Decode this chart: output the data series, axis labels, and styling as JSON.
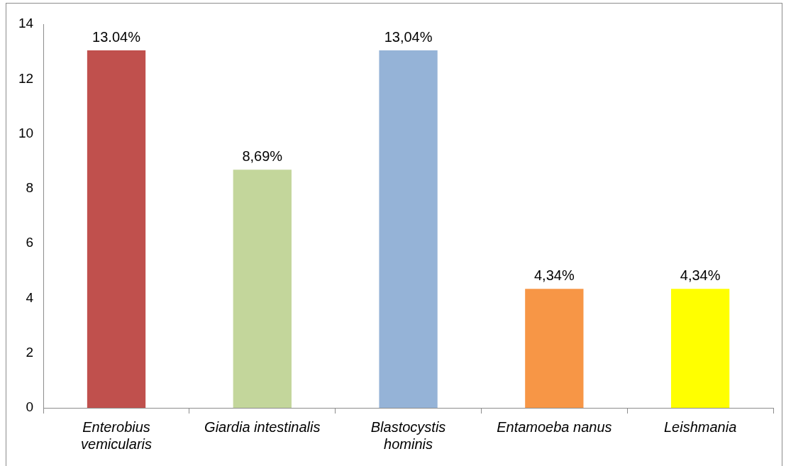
{
  "chart_data": {
    "type": "bar",
    "categories": [
      "Enterobius vemicularis",
      "Giardia intestinalis",
      "Blastocystis hominis",
      "Entamoeba nanus",
      "Leishmania"
    ],
    "values": [
      13.04,
      8.69,
      13.04,
      4.34,
      4.34
    ],
    "colors": [
      "#c0504d",
      "#c3d69b",
      "#95b3d7",
      "#f79646",
      "#ffff00"
    ],
    "value_labels": [
      "13.04%",
      "8,69%",
      "13,04%",
      "4,34%",
      "4,34%"
    ],
    "ylim": [
      0,
      14
    ],
    "yticks": [
      0,
      2,
      4,
      6,
      8,
      10,
      12,
      14
    ],
    "grid": false,
    "legend": false
  }
}
